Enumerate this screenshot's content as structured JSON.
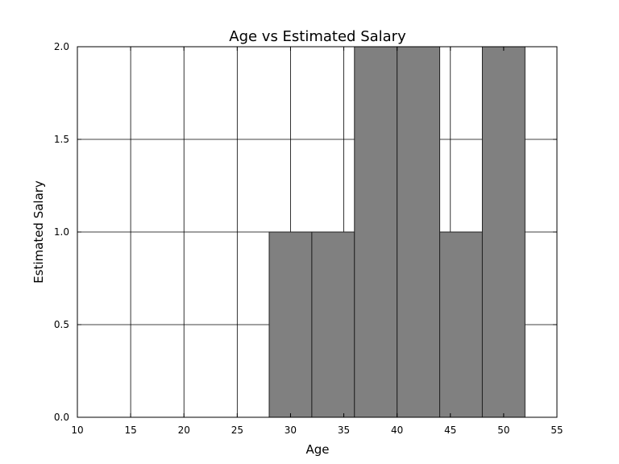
{
  "chart_data": {
    "type": "bar",
    "title": "Age vs Estimated Salary",
    "xlabel": "Age",
    "ylabel": "Estimated Salary",
    "xlim": [
      10,
      55
    ],
    "ylim": [
      0,
      2.0
    ],
    "grid": true,
    "bar_color": "#808080",
    "edge_color": "#222222",
    "x_ticks": [
      "10",
      "15",
      "20",
      "25",
      "30",
      "35",
      "40",
      "45",
      "50",
      "55"
    ],
    "y_ticks": [
      "0.0",
      "0.5",
      "1.0",
      "1.5",
      "2.0"
    ],
    "bins": [
      {
        "start": 28,
        "end": 32,
        "value": 1
      },
      {
        "start": 32,
        "end": 36,
        "value": 1
      },
      {
        "start": 36,
        "end": 40,
        "value": 2
      },
      {
        "start": 40,
        "end": 44,
        "value": 2
      },
      {
        "start": 44,
        "end": 48,
        "value": 1
      },
      {
        "start": 48,
        "end": 52,
        "value": 2
      }
    ]
  }
}
